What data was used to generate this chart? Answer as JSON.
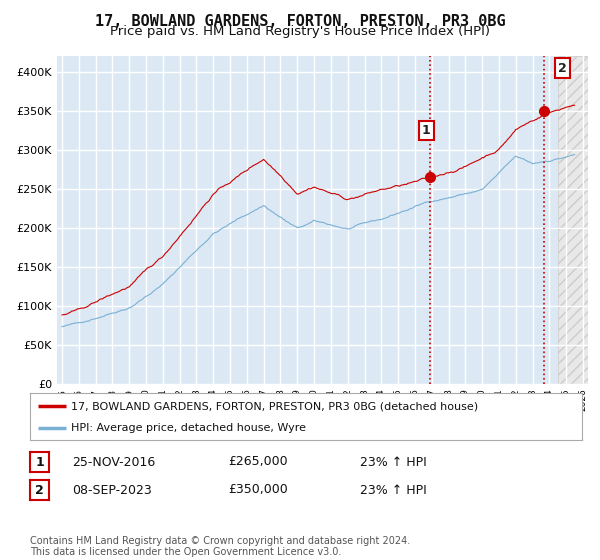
{
  "title": "17, BOWLAND GARDENS, FORTON, PRESTON, PR3 0BG",
  "subtitle": "Price paid vs. HM Land Registry's House Price Index (HPI)",
  "ylim": [
    0,
    420000
  ],
  "yticks": [
    0,
    50000,
    100000,
    150000,
    200000,
    250000,
    300000,
    350000,
    400000
  ],
  "ytick_labels": [
    "£0",
    "£50K",
    "£100K",
    "£150K",
    "£200K",
    "£250K",
    "£300K",
    "£350K",
    "£400K"
  ],
  "background_color": "#ffffff",
  "plot_bg_color": "#dce9f5",
  "plot_bg_color_future": "#e8e8e8",
  "grid_color": "#ffffff",
  "line1_color": "#cc0000",
  "line2_color": "#7ab0d4",
  "transaction1_x": 2016.917,
  "transaction1_y": 265000,
  "transaction2_x": 2023.708,
  "transaction2_y": 350000,
  "future_start_x": 2024.5,
  "vline_color": "#cc0000",
  "legend_entries": [
    "17, BOWLAND GARDENS, FORTON, PRESTON, PR3 0BG (detached house)",
    "HPI: Average price, detached house, Wyre"
  ],
  "table_rows": [
    [
      "1",
      "25-NOV-2016",
      "£265,000",
      "23% ↑ HPI"
    ],
    [
      "2",
      "08-SEP-2023",
      "£350,000",
      "23% ↑ HPI"
    ]
  ],
  "footnote": "Contains HM Land Registry data © Crown copyright and database right 2024.\nThis data is licensed under the Open Government Licence v3.0.",
  "title_fontsize": 11,
  "subtitle_fontsize": 9.5,
  "tick_fontsize": 8,
  "xlim_start": 1994.7,
  "xlim_end": 2026.3
}
